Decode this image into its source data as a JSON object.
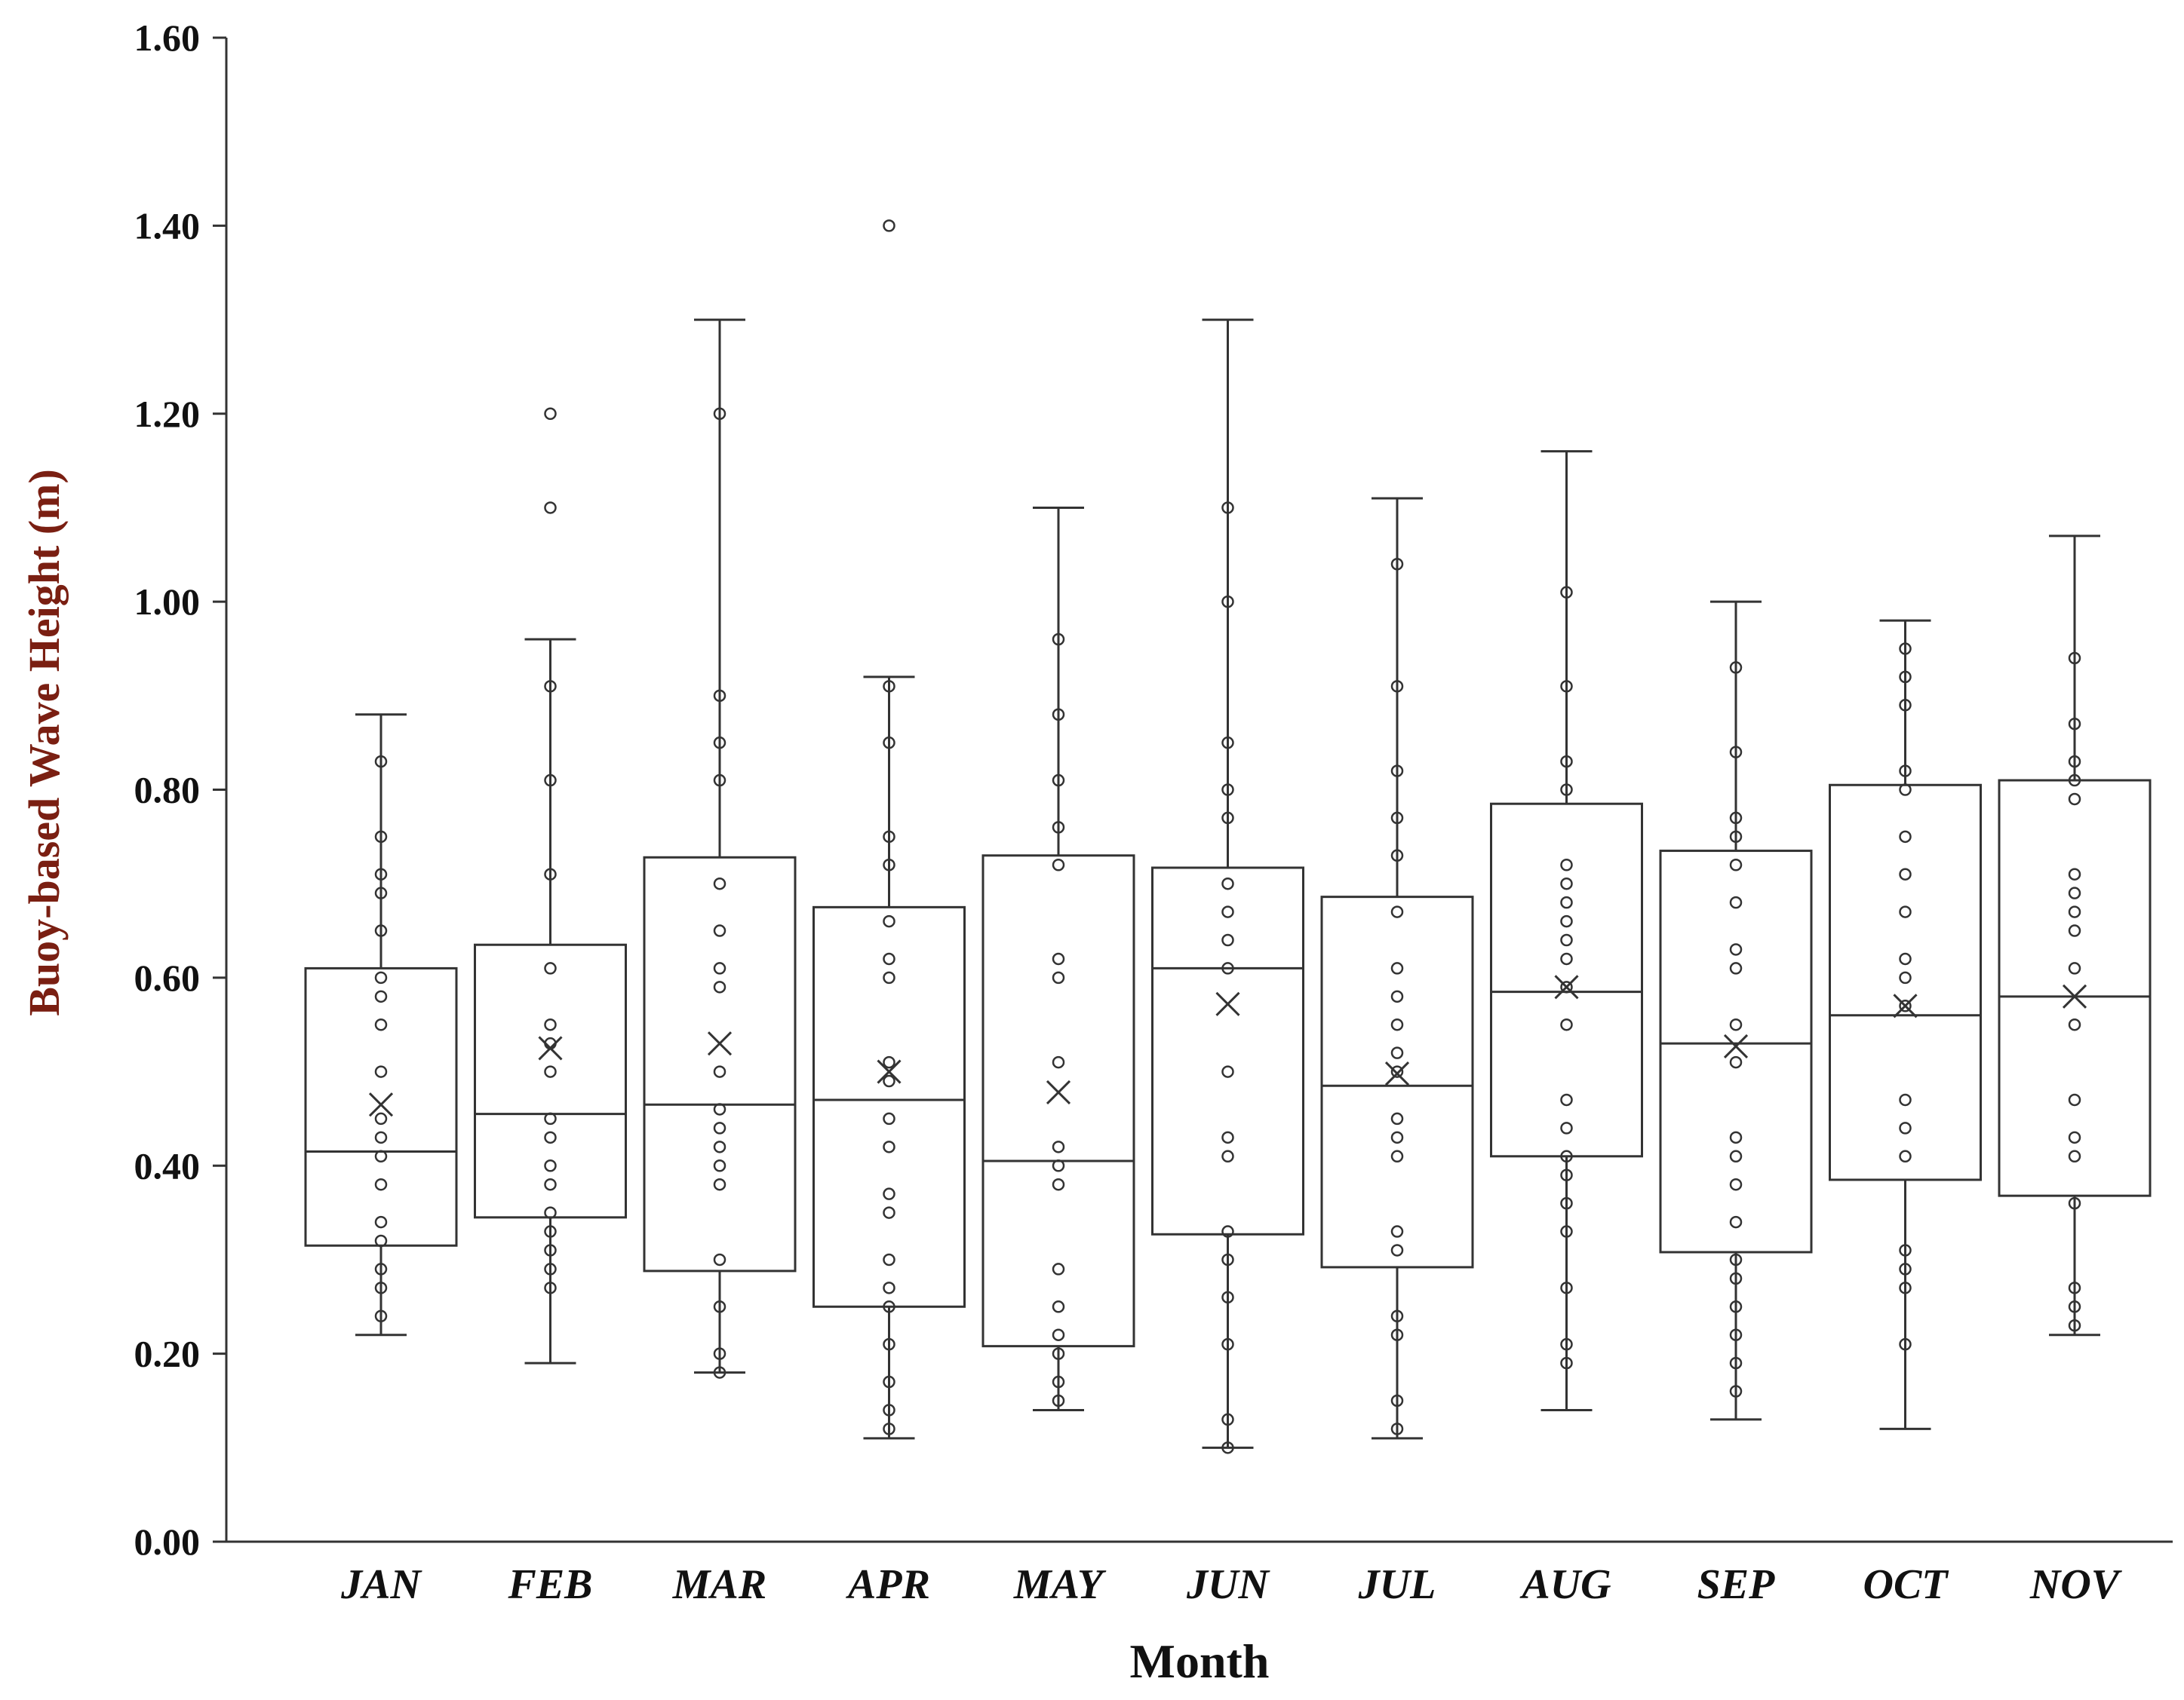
{
  "chart_data": {
    "type": "box",
    "xlabel": "Month",
    "ylabel": "Buoy-based Wave Height (m)",
    "ylim": [
      0,
      1.6
    ],
    "yticks": [
      "0.00",
      "0.20",
      "0.40",
      "0.60",
      "0.80",
      "1.00",
      "1.20",
      "1.40",
      "1.60"
    ],
    "grid": false,
    "categories": [
      "JAN",
      "FEB",
      "MAR",
      "APR",
      "MAY",
      "JUN",
      "JUL",
      "AUG",
      "SEP",
      "OCT",
      "NOV"
    ],
    "boxes": [
      {
        "month": "JAN",
        "min": 0.22,
        "q1": 0.315,
        "median": 0.415,
        "q3": 0.61,
        "max": 0.88,
        "mean": 0.465,
        "points": [
          0.24,
          0.27,
          0.29,
          0.32,
          0.34,
          0.38,
          0.41,
          0.43,
          0.45,
          0.5,
          0.55,
          0.58,
          0.6,
          0.65,
          0.69,
          0.71,
          0.75,
          0.83
        ]
      },
      {
        "month": "FEB",
        "min": 0.19,
        "q1": 0.345,
        "median": 0.455,
        "q3": 0.635,
        "max": 0.96,
        "mean": 0.525,
        "points": [
          0.27,
          0.29,
          0.31,
          0.33,
          0.35,
          0.38,
          0.4,
          0.43,
          0.45,
          0.5,
          0.53,
          0.55,
          0.61,
          0.71,
          0.81,
          0.91,
          1.1,
          1.2
        ]
      },
      {
        "month": "MAR",
        "min": 0.18,
        "q1": 0.288,
        "median": 0.465,
        "q3": 0.728,
        "max": 1.3,
        "mean": 0.53,
        "points": [
          0.18,
          0.2,
          0.25,
          0.3,
          0.38,
          0.4,
          0.42,
          0.44,
          0.46,
          0.5,
          0.59,
          0.61,
          0.65,
          0.7,
          0.81,
          0.85,
          0.9,
          1.2
        ]
      },
      {
        "month": "APR",
        "min": 0.11,
        "q1": 0.25,
        "median": 0.47,
        "q3": 0.675,
        "max": 0.92,
        "mean": 0.5,
        "points": [
          0.12,
          0.14,
          0.17,
          0.21,
          0.25,
          0.27,
          0.3,
          0.35,
          0.37,
          0.42,
          0.45,
          0.49,
          0.51,
          0.6,
          0.62,
          0.66,
          0.72,
          0.75,
          0.85,
          0.91,
          1.4
        ]
      },
      {
        "month": "MAY",
        "min": 0.14,
        "q1": 0.208,
        "median": 0.405,
        "q3": 0.73,
        "max": 1.1,
        "mean": 0.478,
        "points": [
          0.15,
          0.17,
          0.2,
          0.22,
          0.25,
          0.29,
          0.38,
          0.4,
          0.42,
          0.51,
          0.6,
          0.62,
          0.72,
          0.76,
          0.81,
          0.88,
          0.96
        ]
      },
      {
        "month": "JUN",
        "min": 0.1,
        "q1": 0.327,
        "median": 0.61,
        "q3": 0.717,
        "max": 1.3,
        "mean": 0.572,
        "points": [
          0.1,
          0.13,
          0.21,
          0.26,
          0.3,
          0.33,
          0.41,
          0.43,
          0.5,
          0.61,
          0.64,
          0.67,
          0.7,
          0.77,
          0.8,
          0.85,
          1.0,
          1.1
        ]
      },
      {
        "month": "JUL",
        "min": 0.11,
        "q1": 0.292,
        "median": 0.485,
        "q3": 0.686,
        "max": 1.11,
        "mean": 0.498,
        "points": [
          0.12,
          0.15,
          0.22,
          0.24,
          0.31,
          0.33,
          0.41,
          0.43,
          0.45,
          0.5,
          0.52,
          0.55,
          0.58,
          0.61,
          0.67,
          0.73,
          0.77,
          0.82,
          0.91,
          1.04
        ]
      },
      {
        "month": "AUG",
        "min": 0.14,
        "q1": 0.41,
        "median": 0.585,
        "q3": 0.785,
        "max": 1.16,
        "mean": 0.59,
        "points": [
          0.19,
          0.21,
          0.27,
          0.33,
          0.36,
          0.39,
          0.41,
          0.44,
          0.47,
          0.55,
          0.59,
          0.62,
          0.64,
          0.66,
          0.68,
          0.7,
          0.72,
          0.8,
          0.83,
          0.91,
          1.01
        ]
      },
      {
        "month": "SEP",
        "min": 0.13,
        "q1": 0.308,
        "median": 0.53,
        "q3": 0.735,
        "max": 1.0,
        "mean": 0.527,
        "points": [
          0.16,
          0.19,
          0.22,
          0.25,
          0.28,
          0.3,
          0.34,
          0.38,
          0.41,
          0.43,
          0.51,
          0.55,
          0.61,
          0.63,
          0.68,
          0.72,
          0.75,
          0.77,
          0.84,
          0.93
        ]
      },
      {
        "month": "OCT",
        "min": 0.12,
        "q1": 0.385,
        "median": 0.56,
        "q3": 0.805,
        "max": 0.98,
        "mean": 0.57,
        "points": [
          0.21,
          0.27,
          0.29,
          0.31,
          0.41,
          0.44,
          0.47,
          0.57,
          0.6,
          0.62,
          0.67,
          0.71,
          0.75,
          0.8,
          0.82,
          0.89,
          0.92,
          0.95
        ]
      },
      {
        "month": "NOV",
        "min": 0.22,
        "q1": 0.368,
        "median": 0.58,
        "q3": 0.81,
        "max": 1.07,
        "mean": 0.58,
        "points": [
          0.23,
          0.25,
          0.27,
          0.36,
          0.41,
          0.43,
          0.47,
          0.55,
          0.61,
          0.65,
          0.67,
          0.69,
          0.71,
          0.79,
          0.81,
          0.83,
          0.87,
          0.94
        ]
      }
    ]
  }
}
